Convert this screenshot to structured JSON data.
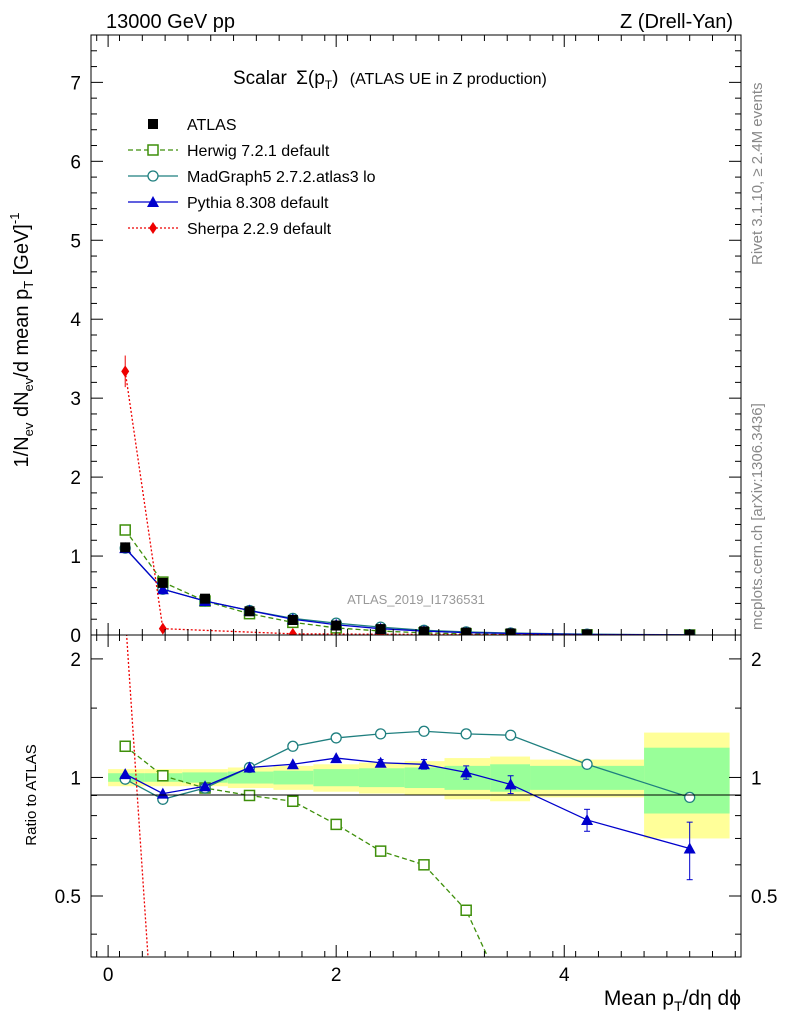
{
  "header": {
    "left": "13000 GeV pp",
    "right": "Z (Drell-Yan)"
  },
  "side_texts": {
    "rivet_prefix": "Rivet 3.1.10,",
    "rivet_suffix": "2.4M events",
    "source": "mcplots.cern.ch [arXiv:1306.3436]"
  },
  "chart_data": {
    "type": "line",
    "title_prefix": "Scalar",
    "title_suffix": "(ATLAS UE in Z production)",
    "analysis_label": "ATLAS_2019_I1736531",
    "xlabel_main": "Mean p",
    "xlabel_sub": "T",
    "xlabel_tail": "/dη dϕ",
    "ylabel_main": "1/N",
    "ylabel_sub": "ev",
    "ylabel_mid": " dN",
    "ylabel_sub2": "ev",
    "ylabel_mid2": "/d mean p",
    "ylabel_sub3": "T",
    "ylabel_tail": " [GeV]",
    "ylabel_sup": "-1",
    "ratio_ylabel": "Ratio to ATLAS",
    "xlim": [
      -0.15,
      5.55
    ],
    "ylim": [
      0,
      7.6
    ],
    "ratio_ylim": [
      0.35,
      2.3
    ],
    "x_ticks": [
      "0",
      "2",
      "4"
    ],
    "x_tick_values": [
      0,
      2,
      4
    ],
    "y_ticks": [
      "0",
      "1",
      "2",
      "3",
      "4",
      "5",
      "6",
      "7"
    ],
    "y_tick_values": [
      0,
      1,
      2,
      3,
      4,
      5,
      6,
      7
    ],
    "ratio_ticks": [
      "0.5",
      "1",
      "2"
    ],
    "ratio_tick_values": [
      0.5,
      1,
      2
    ],
    "bins": [
      [
        0.0,
        0.32
      ],
      [
        0.32,
        0.65
      ],
      [
        0.65,
        1.05
      ],
      [
        1.05,
        1.45
      ],
      [
        1.45,
        1.8
      ],
      [
        1.8,
        2.2
      ],
      [
        2.2,
        2.6
      ],
      [
        2.6,
        2.95
      ],
      [
        2.95,
        3.35
      ],
      [
        3.35,
        3.7
      ],
      [
        3.7,
        4.7
      ],
      [
        4.7,
        5.45
      ]
    ],
    "band_yellow": [
      0.05,
      0.05,
      0.05,
      0.06,
      0.07,
      0.08,
      0.09,
      0.1,
      0.12,
      0.13,
      0.11,
      0.3
    ],
    "band_green": [
      0.025,
      0.025,
      0.03,
      0.035,
      0.04,
      0.05,
      0.055,
      0.06,
      0.07,
      0.08,
      0.07,
      0.19
    ],
    "data": {
      "name": "ATLAS",
      "x": [
        0.15,
        0.48,
        0.85,
        1.24,
        1.62,
        2.0,
        2.39,
        2.77,
        3.14,
        3.53,
        4.2,
        5.1
      ],
      "y": [
        1.11,
        0.66,
        0.46,
        0.3,
        0.19,
        0.12,
        0.075,
        0.045,
        0.03,
        0.02,
        0.008,
        0.003
      ]
    },
    "series": [
      {
        "name": "Herwig 7.2.1 default",
        "color": "#3e8f0a",
        "marker": "open-square",
        "dash": "5,3",
        "x": [
          0.15,
          0.48,
          0.85,
          1.24,
          1.62,
          2.0,
          2.39,
          2.77,
          3.14,
          3.53,
          4.2,
          5.1
        ],
        "y": [
          1.33,
          0.67,
          0.43,
          0.27,
          0.16,
          0.09,
          0.05,
          0.027,
          0.014,
          0.006,
          0.002,
          0.0005
        ],
        "ratio_x": [
          0.15,
          0.48,
          0.85,
          1.24,
          1.62,
          2.0,
          2.39,
          2.77,
          3.14,
          3.37
        ],
        "ratio": [
          1.2,
          1.01,
          0.94,
          0.9,
          0.87,
          0.76,
          0.65,
          0.6,
          0.46,
          0.33
        ]
      },
      {
        "name": "MadGraph5 2.7.2.atlas3 lo",
        "color": "#1f7f7f",
        "marker": "open-circle",
        "dash": "",
        "x": [
          0.15,
          0.48,
          0.85,
          1.24,
          1.62,
          2.0,
          2.39,
          2.77,
          3.14,
          3.53,
          4.2,
          5.1
        ],
        "y": [
          1.1,
          0.58,
          0.43,
          0.31,
          0.21,
          0.15,
          0.1,
          0.06,
          0.04,
          0.025,
          0.01,
          0.003
        ],
        "ratio_x": [
          0.15,
          0.48,
          0.85,
          1.24,
          1.62,
          2.0,
          2.39,
          2.77,
          3.14,
          3.53,
          4.2,
          5.1
        ],
        "ratio": [
          0.99,
          0.88,
          0.94,
          1.06,
          1.2,
          1.26,
          1.29,
          1.31,
          1.29,
          1.28,
          1.08,
          0.89
        ]
      },
      {
        "name": "Pythia 8.308 default",
        "color": "#0000cc",
        "marker": "filled-triangle",
        "dash": "",
        "x": [
          0.15,
          0.48,
          0.85,
          1.24,
          1.62,
          2.0,
          2.39,
          2.77,
          3.14,
          3.53,
          4.2,
          5.1
        ],
        "y": [
          1.1,
          0.58,
          0.43,
          0.31,
          0.2,
          0.13,
          0.08,
          0.05,
          0.03,
          0.02,
          0.006,
          0.002
        ],
        "ratio_x": [
          0.15,
          0.48,
          0.85,
          1.24,
          1.62,
          2.0,
          2.39,
          2.77,
          3.14,
          3.53,
          4.2,
          5.1
        ],
        "ratio": [
          1.02,
          0.91,
          0.95,
          1.06,
          1.08,
          1.12,
          1.09,
          1.08,
          1.03,
          0.96,
          0.78,
          0.66
        ],
        "ratio_err": [
          0,
          0,
          0,
          0,
          0,
          0,
          0.02,
          0.03,
          0.04,
          0.05,
          0.05,
          0.11
        ]
      },
      {
        "name": "Sherpa 2.2.9 default",
        "color": "#ee0000",
        "marker": "filled-diamond",
        "dash": "2,2",
        "x": [
          0.15,
          0.48,
          1.62,
          2.39,
          4.2,
          5.1
        ],
        "y": [
          3.34,
          0.08,
          0.015,
          0.01,
          0.0,
          0.0
        ],
        "y_err": [
          0.2,
          0,
          0,
          0,
          0,
          0
        ],
        "ratio_x": [
          0.15,
          0.35
        ],
        "ratio": [
          2.6,
          0.35
        ]
      }
    ]
  }
}
